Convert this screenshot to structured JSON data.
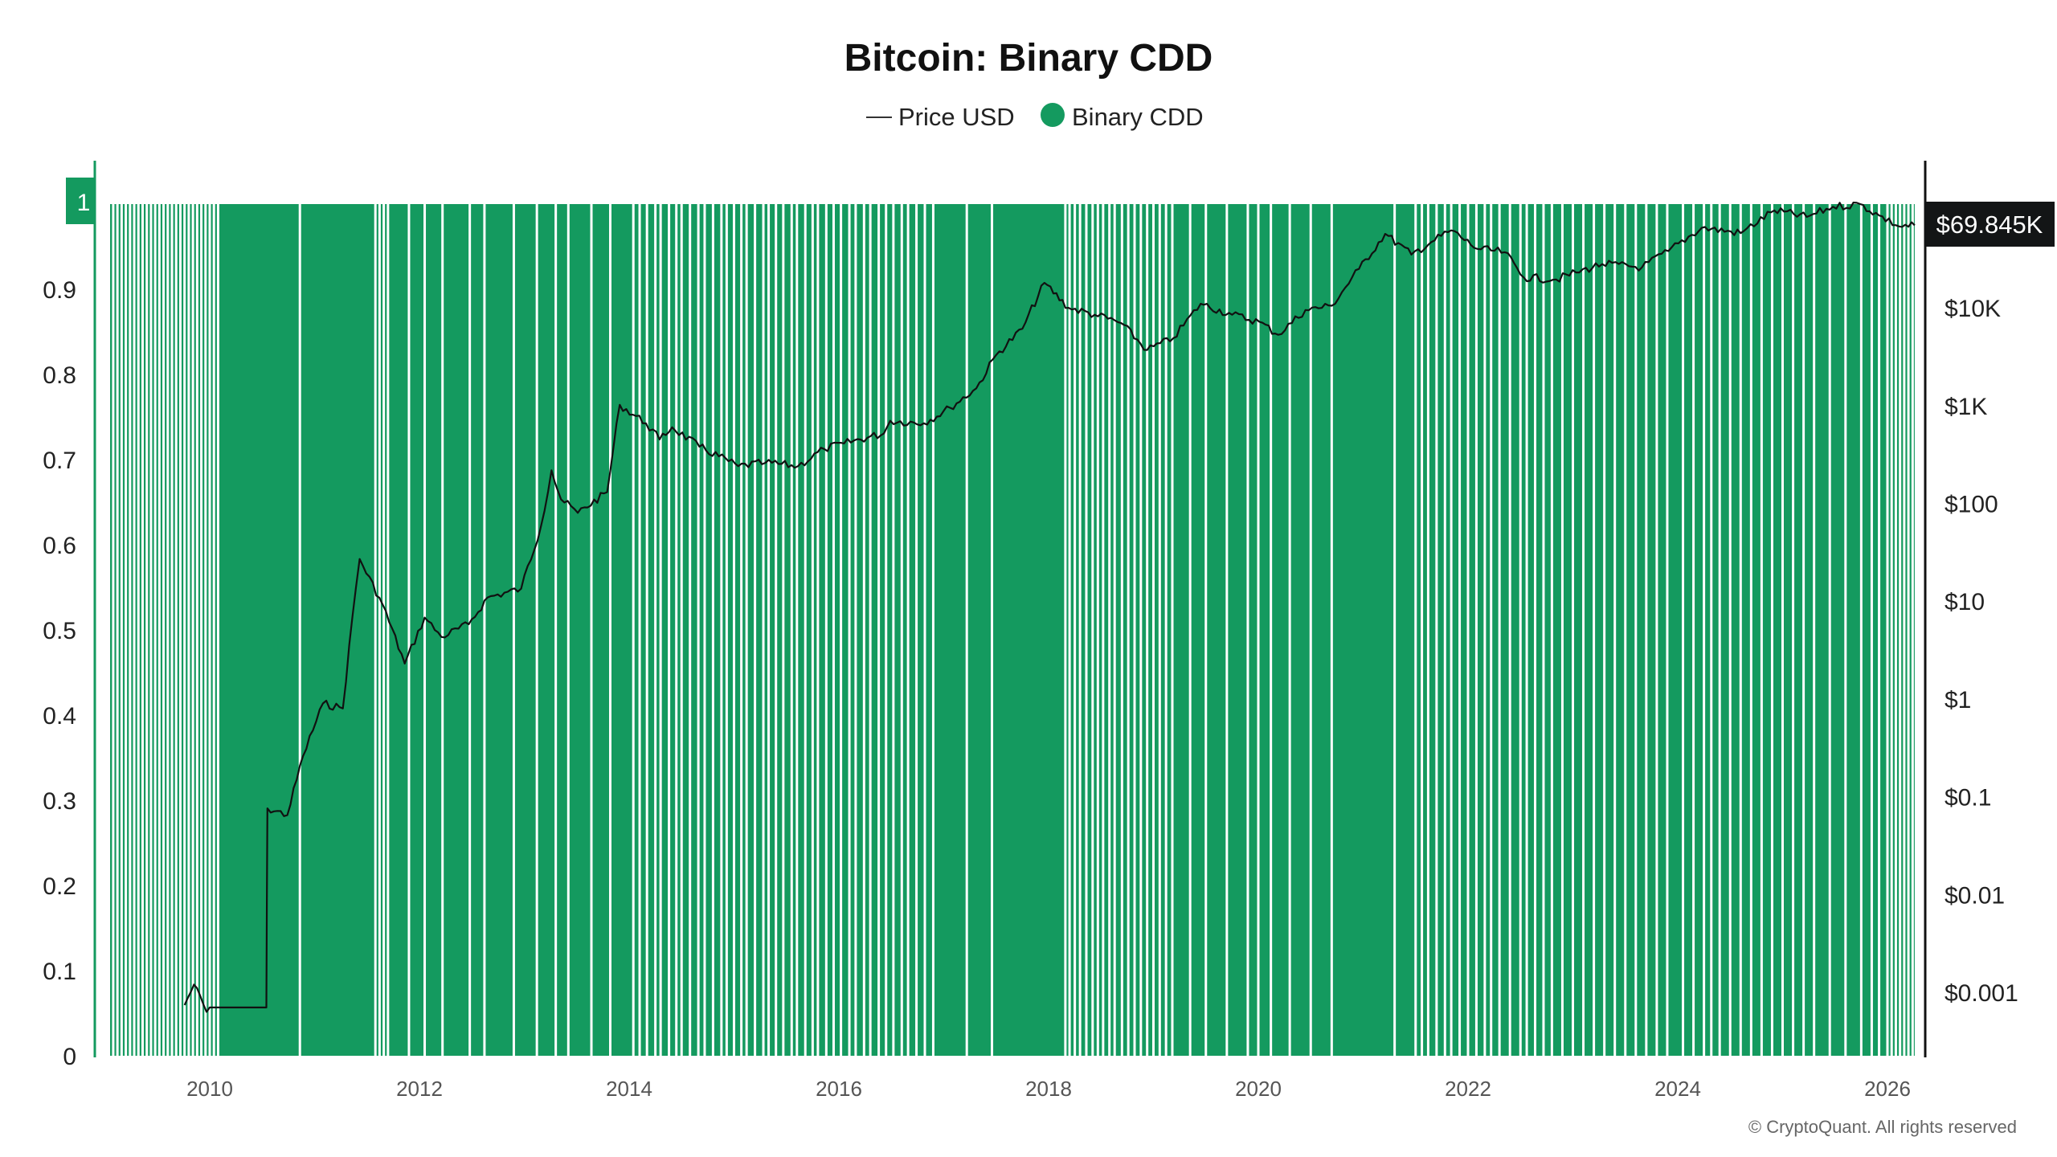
{
  "chart_data": {
    "type": "bar+line",
    "title": "Bitcoin: Binary CDD",
    "legend": [
      {
        "label": "Price USD",
        "symbol": "line",
        "color": "#111111"
      },
      {
        "label": "Binary CDD",
        "symbol": "dot",
        "color": "#149a5f"
      }
    ],
    "legend_placement": "top-center",
    "left_axis": {
      "ticks": [
        "0",
        "0.1",
        "0.2",
        "0.3",
        "0.4",
        "0.5",
        "0.6",
        "0.7",
        "0.8",
        "0.9",
        "1"
      ],
      "range": [
        0,
        1
      ],
      "current_badge": "1"
    },
    "right_axis": {
      "scale": "log",
      "ticks": [
        {
          "label": "$0.001",
          "value": 0.001
        },
        {
          "label": "$0.01",
          "value": 0.01
        },
        {
          "label": "$0.1",
          "value": 0.1
        },
        {
          "label": "$1",
          "value": 1
        },
        {
          "label": "$10",
          "value": 10
        },
        {
          "label": "$100",
          "value": 100
        },
        {
          "label": "$1K",
          "value": 1000
        },
        {
          "label": "$10K",
          "value": 10000
        }
      ],
      "current_badge": "$69.845K"
    },
    "x_axis": {
      "ticks": [
        "2010",
        "2012",
        "2014",
        "2016",
        "2018",
        "2020",
        "2022",
        "2024",
        "2026"
      ],
      "range": [
        2009.0,
        2026.3
      ]
    },
    "binary_cdd": {
      "start": 2009.05,
      "end": 2026.26,
      "default_value": 1,
      "zero_value_dates": [
        2009.08,
        2009.12,
        2009.16,
        2009.2,
        2009.24,
        2009.28,
        2009.32,
        2009.36,
        2009.4,
        2009.44,
        2009.48,
        2009.52,
        2009.56,
        2009.6,
        2009.64,
        2009.68,
        2009.72,
        2009.76,
        2009.8,
        2009.84,
        2009.88,
        2009.92,
        2009.96,
        2010.0,
        2010.04,
        2010.08,
        2010.86,
        2011.58,
        2011.62,
        2011.66,
        2011.7,
        2011.9,
        2012.05,
        2012.22,
        2012.48,
        2012.62,
        2012.9,
        2013.12,
        2013.3,
        2013.42,
        2013.64,
        2013.82,
        2014.04,
        2014.1,
        2014.17,
        2014.25,
        2014.3,
        2014.38,
        2014.45,
        2014.5,
        2014.58,
        2014.66,
        2014.72,
        2014.8,
        2014.88,
        2014.93,
        2015.0,
        2015.07,
        2015.12,
        2015.2,
        2015.28,
        2015.33,
        2015.4,
        2015.47,
        2015.55,
        2015.6,
        2015.68,
        2015.75,
        2015.8,
        2015.88,
        2015.95,
        2016.02,
        2016.1,
        2016.16,
        2016.24,
        2016.3,
        2016.38,
        2016.45,
        2016.52,
        2016.6,
        2016.66,
        2016.74,
        2016.82,
        2016.9,
        2017.22,
        2017.46,
        2018.16,
        2018.2,
        2018.25,
        2018.3,
        2018.36,
        2018.42,
        2018.47,
        2018.52,
        2018.58,
        2018.63,
        2018.7,
        2018.76,
        2018.82,
        2018.88,
        2018.94,
        2019.0,
        2019.06,
        2019.12,
        2019.18,
        2019.35,
        2019.5,
        2019.7,
        2019.9,
        2020.0,
        2020.12,
        2020.3,
        2020.5,
        2020.7,
        2021.3,
        2021.5,
        2021.56,
        2021.62,
        2021.7,
        2021.78,
        2021.84,
        2021.92,
        2022.0,
        2022.08,
        2022.16,
        2022.22,
        2022.3,
        2022.4,
        2022.5,
        2022.56,
        2022.64,
        2022.72,
        2022.8,
        2022.9,
        2023.0,
        2023.1,
        2023.2,
        2023.3,
        2023.4,
        2023.5,
        2023.6,
        2023.7,
        2023.8,
        2023.9,
        2024.05,
        2024.15,
        2024.25,
        2024.32,
        2024.4,
        2024.5,
        2024.6,
        2024.7,
        2024.8,
        2024.9,
        2025.0,
        2025.1,
        2025.2,
        2025.3,
        2025.45,
        2025.6,
        2025.75,
        2025.85,
        2025.92,
        2026.0,
        2026.04,
        2026.08,
        2026.12,
        2026.16,
        2026.2,
        2026.24
      ]
    },
    "price_series": [
      [
        2009.76,
        0.00074
      ],
      [
        2009.85,
        0.0012
      ],
      [
        2009.97,
        0.00063
      ],
      [
        2010.0,
        0.0007
      ],
      [
        2010.54,
        0.0007
      ],
      [
        2010.55,
        0.076
      ],
      [
        2010.74,
        0.065
      ],
      [
        2010.89,
        0.26
      ],
      [
        2011.08,
        0.9
      ],
      [
        2011.27,
        0.8
      ],
      [
        2011.36,
        6.8
      ],
      [
        2011.43,
        27
      ],
      [
        2011.65,
        9.2
      ],
      [
        2011.86,
        2.3
      ],
      [
        2012.05,
        6.8
      ],
      [
        2012.21,
        4.3
      ],
      [
        2012.47,
        5.8
      ],
      [
        2012.65,
        10.9
      ],
      [
        2012.97,
        13.4
      ],
      [
        2013.16,
        59
      ],
      [
        2013.26,
        218
      ],
      [
        2013.35,
        110
      ],
      [
        2013.51,
        80
      ],
      [
        2013.79,
        130
      ],
      [
        2013.91,
        1020
      ],
      [
        2014.16,
        660
      ],
      [
        2014.29,
        450
      ],
      [
        2014.41,
        600
      ],
      [
        2014.67,
        380
      ],
      [
        2015.04,
        240
      ],
      [
        2015.3,
        260
      ],
      [
        2015.61,
        240
      ],
      [
        2015.86,
        360
      ],
      [
        2016.05,
        410
      ],
      [
        2016.43,
        520
      ],
      [
        2016.49,
        700
      ],
      [
        2016.81,
        660
      ],
      [
        2017.06,
        950
      ],
      [
        2017.31,
        1500
      ],
      [
        2017.5,
        3300
      ],
      [
        2017.75,
        6100
      ],
      [
        2017.96,
        18000
      ],
      [
        2018.19,
        10000
      ],
      [
        2018.44,
        8500
      ],
      [
        2018.69,
        7000
      ],
      [
        2018.94,
        3700
      ],
      [
        2019.19,
        4900
      ],
      [
        2019.45,
        11000
      ],
      [
        2019.75,
        8500
      ],
      [
        2020.01,
        7200
      ],
      [
        2020.19,
        5300
      ],
      [
        2020.45,
        9500
      ],
      [
        2020.7,
        10500
      ],
      [
        2020.96,
        25000
      ],
      [
        2021.21,
        57000
      ],
      [
        2021.46,
        35000
      ],
      [
        2021.65,
        47000
      ],
      [
        2021.84,
        62000
      ],
      [
        2022.09,
        40000
      ],
      [
        2022.35,
        37000
      ],
      [
        2022.53,
        20500
      ],
      [
        2022.84,
        19500
      ],
      [
        2023.03,
        23000
      ],
      [
        2023.28,
        28000
      ],
      [
        2023.66,
        26000
      ],
      [
        2023.91,
        38000
      ],
      [
        2024.23,
        66000
      ],
      [
        2024.6,
        58000
      ],
      [
        2024.92,
        99000
      ],
      [
        2025.23,
        85000
      ],
      [
        2025.48,
        108000
      ],
      [
        2025.74,
        115000
      ],
      [
        2025.92,
        88000
      ],
      [
        2026.11,
        68000
      ],
      [
        2026.26,
        69845
      ]
    ]
  },
  "footer": {
    "copyright": "© CryptoQuant. All rights reserved"
  }
}
